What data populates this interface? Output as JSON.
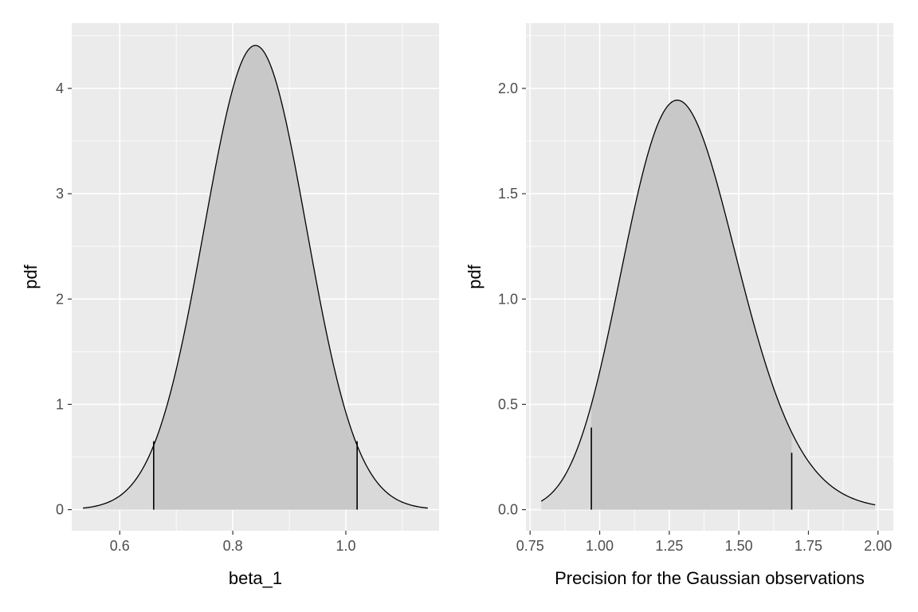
{
  "chart_data": [
    {
      "type": "area",
      "xlabel": "beta_1",
      "ylabel": "pdf",
      "xlim": [
        0.515,
        1.165
      ],
      "ylim": [
        -0.2,
        4.62
      ],
      "x_ticks": [
        0.6,
        0.8,
        1.0
      ],
      "x_tick_labels": [
        "0.6",
        "0.8",
        "1.0"
      ],
      "x_minor_ticks": [
        0.7,
        0.9,
        1.1
      ],
      "y_ticks": [
        0,
        1,
        2,
        3,
        4
      ],
      "y_tick_labels": [
        "0",
        "1",
        "2",
        "3",
        "4"
      ],
      "y_minor_ticks": [
        0.5,
        1.5,
        2.5,
        3.5,
        4.5
      ],
      "grid": true,
      "density": {
        "distribution": "normal",
        "mean": 0.84,
        "sd": 0.0905,
        "x_range": [
          0.535,
          1.145
        ]
      },
      "interval": [
        0.66,
        1.02
      ],
      "interval_heights": [
        0.65,
        0.65
      ]
    },
    {
      "type": "area",
      "xlabel": "Precision for the Gaussian observations",
      "ylabel": "pdf",
      "xlim": [
        0.735,
        2.055
      ],
      "ylim": [
        -0.1,
        2.31
      ],
      "x_ticks": [
        0.75,
        1.0,
        1.25,
        1.5,
        1.75,
        2.0
      ],
      "x_tick_labels": [
        "0.75",
        "1.00",
        "1.25",
        "1.50",
        "1.75",
        "2.00"
      ],
      "x_minor_ticks": [
        0.875,
        1.125,
        1.375,
        1.625,
        1.875
      ],
      "y_ticks": [
        0.0,
        0.5,
        1.0,
        1.5,
        2.0
      ],
      "y_tick_labels": [
        "0.0",
        "0.5",
        "1.0",
        "1.5",
        "2.0"
      ],
      "y_minor_ticks": [
        0.25,
        0.75,
        1.25,
        1.75,
        2.25
      ],
      "grid": true,
      "density": {
        "distribution": "gamma",
        "shape": 40,
        "rate": 30.5,
        "x_range": [
          0.79,
          1.99
        ]
      },
      "interval": [
        0.97,
        1.69
      ],
      "interval_heights": [
        0.39,
        0.27
      ]
    }
  ]
}
